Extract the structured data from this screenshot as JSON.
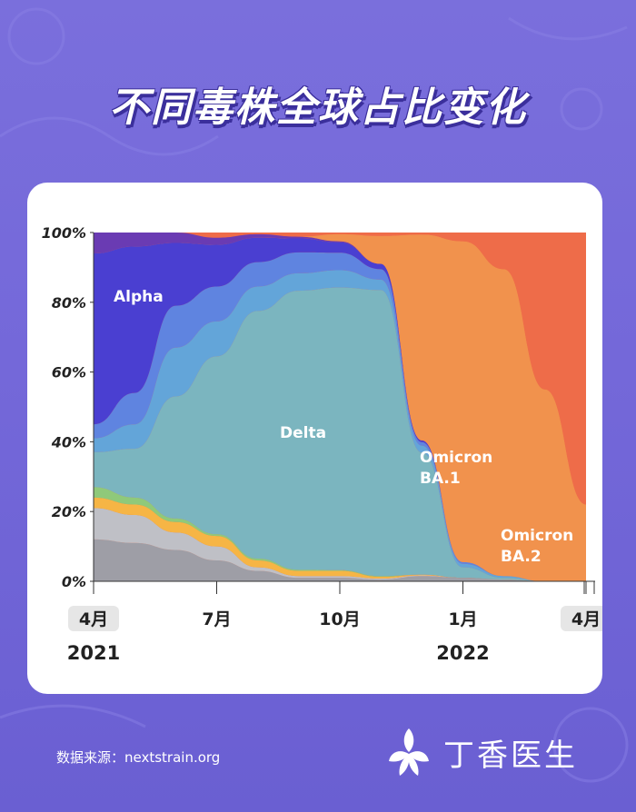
{
  "title": "不同毒株全球占比变化",
  "footer": {
    "source": "数据来源：nextstrain.org",
    "brand": "丁香医生"
  },
  "colors": {
    "background": "#7468d9",
    "alpha": "#4a3fd1",
    "delta": "#7bb5bf",
    "ba1": "#f1924d",
    "ba2": "#ee6c49"
  },
  "chart_data": {
    "type": "area",
    "stacked": true,
    "normalized": true,
    "yticks": [
      "0%",
      "20%",
      "40%",
      "60%",
      "80%",
      "100%"
    ],
    "xticks": [
      "4月",
      "7月",
      "10月",
      "1月",
      "4月"
    ],
    "year_labels": [
      "2021",
      "2022"
    ],
    "ylim": [
      0,
      100
    ],
    "x": [
      "2021-04",
      "2021-05",
      "2021-06",
      "2021-07",
      "2021-08",
      "2021-09",
      "2021-10",
      "2021-11",
      "2021-12",
      "2022-01",
      "2022-02",
      "2022-03",
      "2022-04"
    ],
    "series": [
      {
        "name": "",
        "color": "#9e9ea6",
        "values": [
          12,
          11,
          9,
          6,
          3,
          1,
          1,
          0.5,
          1.5,
          1,
          0.5,
          0,
          0
        ]
      },
      {
        "name": "",
        "color": "#bfc0c6",
        "values": [
          9,
          8,
          5,
          4,
          1,
          0.5,
          0.5,
          0.3,
          0.2,
          0,
          0,
          0,
          0
        ]
      },
      {
        "name": "",
        "color": "#f6b545",
        "values": [
          3,
          3,
          3,
          3,
          2,
          1.5,
          1.5,
          0.5,
          0.2,
          0,
          0,
          0,
          0
        ]
      },
      {
        "name": "",
        "color": "#8fc97a",
        "values": [
          3,
          2,
          1,
          0.5,
          0.5,
          0.3,
          0.2,
          0.2,
          0,
          0,
          0,
          0,
          0
        ]
      },
      {
        "name": "Delta",
        "color": "#7bb5bf",
        "values": [
          10,
          14,
          35,
          51,
          71,
          80,
          81,
          82,
          35,
          3,
          0.5,
          0,
          0
        ]
      },
      {
        "name": "",
        "color": "#63a5d9",
        "values": [
          4,
          7,
          14,
          10,
          7,
          5,
          5,
          3,
          2,
          1,
          0.5,
          0,
          0
        ]
      },
      {
        "name": "",
        "color": "#5f84e0",
        "values": [
          4,
          9,
          12,
          10,
          7,
          6,
          5,
          3,
          1,
          0.5,
          0,
          0,
          0
        ]
      },
      {
        "name": "Alpha",
        "color": "#4a3fd1",
        "values": [
          49,
          42,
          18,
          12,
          7,
          4,
          3,
          1.5,
          0.5,
          0,
          0,
          0,
          0
        ]
      },
      {
        "name": "",
        "color": "#6a3bb3",
        "values": [
          6,
          4,
          3,
          2,
          1,
          0.5,
          0.3,
          0,
          0,
          0,
          0,
          0,
          0
        ]
      },
      {
        "name": "Omicron BA.1",
        "color": "#f1924d",
        "values": [
          0,
          0,
          0,
          0,
          0,
          0,
          2,
          8,
          59,
          92,
          88,
          55,
          22
        ]
      },
      {
        "name": "Omicron BA.2",
        "color": "#ee6c49",
        "values": [
          0,
          0,
          0,
          0,
          0,
          0,
          0,
          0,
          0.6,
          2.5,
          10.5,
          45,
          78
        ]
      }
    ],
    "area_labels": [
      "Alpha",
      "Delta",
      "Omicron",
      "BA.1",
      "Omicron",
      "BA.2"
    ]
  }
}
